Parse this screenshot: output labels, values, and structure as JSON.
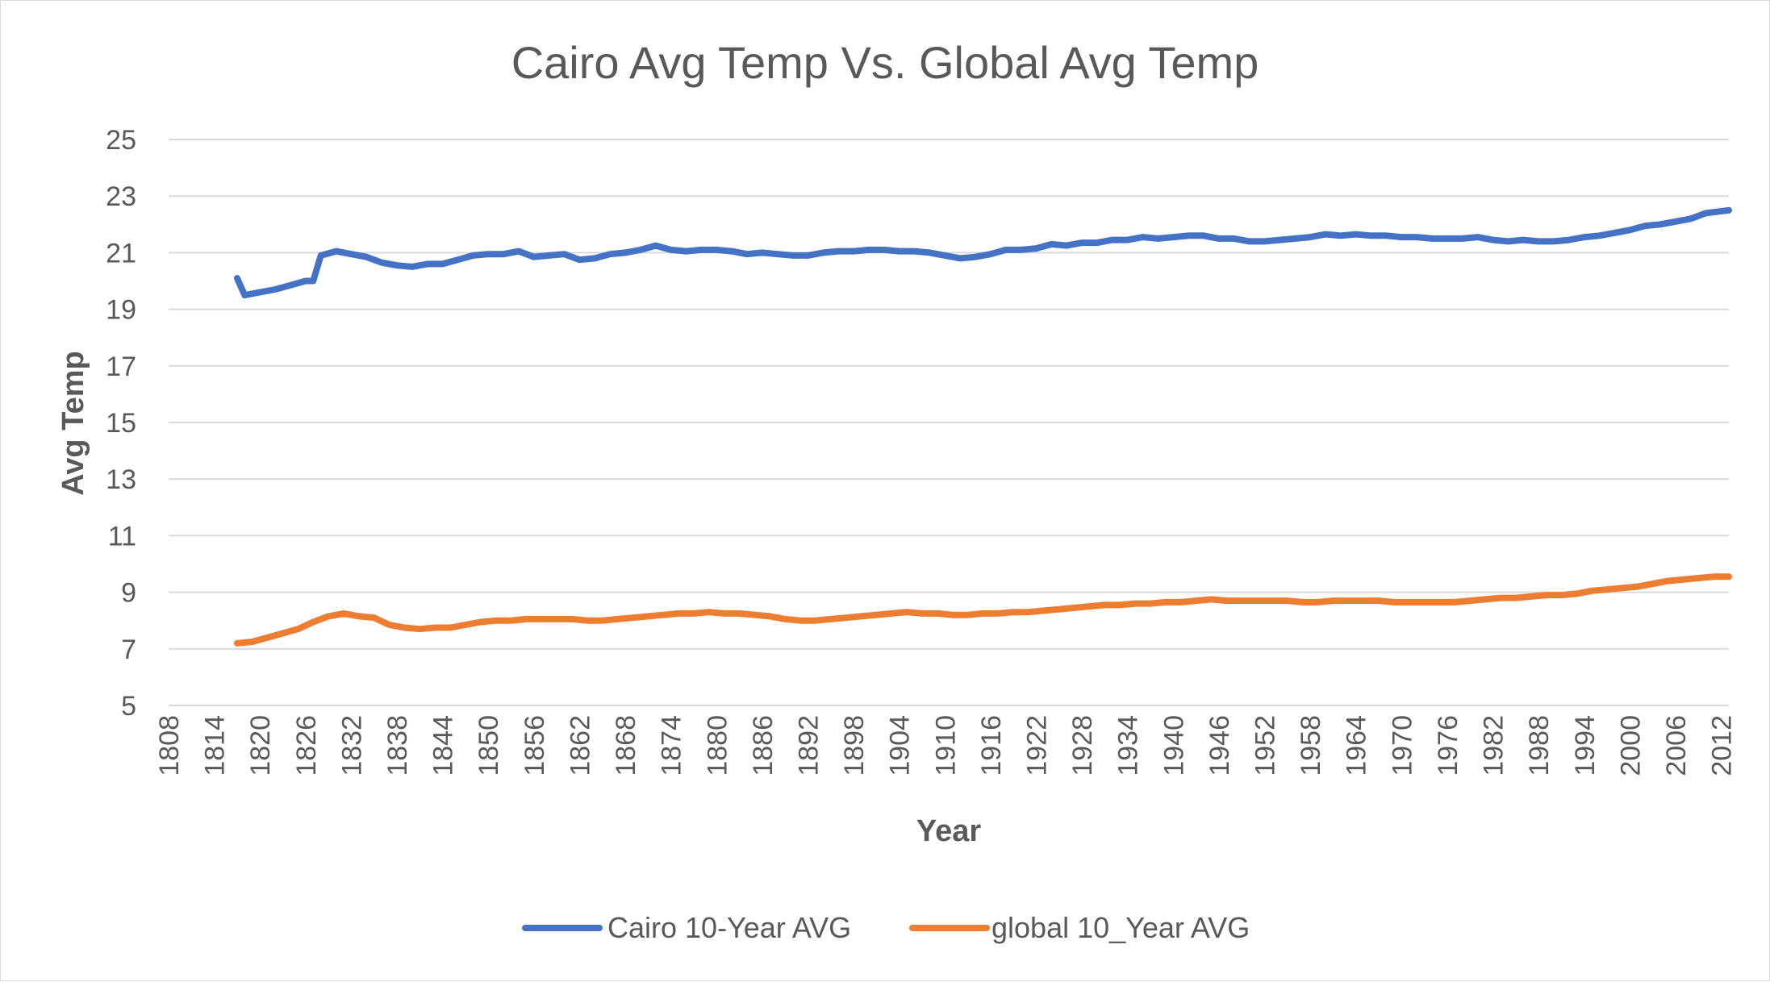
{
  "chart_data": {
    "type": "line",
    "title": "Cairo Avg Temp Vs. Global Avg Temp",
    "xlabel": "Year",
    "ylabel": "Avg Temp",
    "xlim": [
      1808,
      2013
    ],
    "ylim": [
      5,
      25
    ],
    "yticks": [
      "5",
      "7",
      "9",
      "11",
      "13",
      "15",
      "17",
      "19",
      "21",
      "23",
      "25"
    ],
    "xticks": [
      "1808",
      "1814",
      "1820",
      "1826",
      "1832",
      "1838",
      "1844",
      "1850",
      "1856",
      "1862",
      "1868",
      "1874",
      "1880",
      "1886",
      "1892",
      "1898",
      "1904",
      "1910",
      "1916",
      "1922",
      "1928",
      "1934",
      "1940",
      "1946",
      "1952",
      "1958",
      "1964",
      "1970",
      "1976",
      "1982",
      "1988",
      "1994",
      "2000",
      "2006",
      "2012"
    ],
    "grid": true,
    "legend_position": "bottom",
    "series": [
      {
        "name": "Cairo 10-Year AVG",
        "color": "#4472C4",
        "points": [
          [
            1817,
            20.1
          ],
          [
            1818,
            19.5
          ],
          [
            1820,
            19.6
          ],
          [
            1822,
            19.7
          ],
          [
            1824,
            19.85
          ],
          [
            1826,
            20.0
          ],
          [
            1827,
            20.0
          ],
          [
            1828,
            20.9
          ],
          [
            1830,
            21.05
          ],
          [
            1832,
            20.95
          ],
          [
            1834,
            20.85
          ],
          [
            1836,
            20.65
          ],
          [
            1838,
            20.55
          ],
          [
            1840,
            20.5
          ],
          [
            1842,
            20.6
          ],
          [
            1844,
            20.6
          ],
          [
            1846,
            20.75
          ],
          [
            1848,
            20.9
          ],
          [
            1850,
            20.95
          ],
          [
            1852,
            20.95
          ],
          [
            1854,
            21.05
          ],
          [
            1856,
            20.85
          ],
          [
            1858,
            20.9
          ],
          [
            1860,
            20.95
          ],
          [
            1862,
            20.75
          ],
          [
            1864,
            20.8
          ],
          [
            1866,
            20.95
          ],
          [
            1868,
            21.0
          ],
          [
            1870,
            21.1
          ],
          [
            1872,
            21.25
          ],
          [
            1874,
            21.1
          ],
          [
            1876,
            21.05
          ],
          [
            1878,
            21.1
          ],
          [
            1880,
            21.1
          ],
          [
            1882,
            21.05
          ],
          [
            1884,
            20.95
          ],
          [
            1886,
            21.0
          ],
          [
            1888,
            20.95
          ],
          [
            1890,
            20.9
          ],
          [
            1892,
            20.9
          ],
          [
            1894,
            21.0
          ],
          [
            1896,
            21.05
          ],
          [
            1898,
            21.05
          ],
          [
            1900,
            21.1
          ],
          [
            1902,
            21.1
          ],
          [
            1904,
            21.05
          ],
          [
            1906,
            21.05
          ],
          [
            1908,
            21.0
          ],
          [
            1910,
            20.9
          ],
          [
            1912,
            20.8
          ],
          [
            1914,
            20.85
          ],
          [
            1916,
            20.95
          ],
          [
            1918,
            21.1
          ],
          [
            1920,
            21.1
          ],
          [
            1922,
            21.15
          ],
          [
            1924,
            21.3
          ],
          [
            1926,
            21.25
          ],
          [
            1928,
            21.35
          ],
          [
            1930,
            21.35
          ],
          [
            1932,
            21.45
          ],
          [
            1934,
            21.45
          ],
          [
            1936,
            21.55
          ],
          [
            1938,
            21.5
          ],
          [
            1940,
            21.55
          ],
          [
            1942,
            21.6
          ],
          [
            1944,
            21.6
          ],
          [
            1946,
            21.5
          ],
          [
            1948,
            21.5
          ],
          [
            1950,
            21.4
          ],
          [
            1952,
            21.4
          ],
          [
            1954,
            21.45
          ],
          [
            1956,
            21.5
          ],
          [
            1958,
            21.55
          ],
          [
            1960,
            21.65
          ],
          [
            1962,
            21.6
          ],
          [
            1964,
            21.65
          ],
          [
            1966,
            21.6
          ],
          [
            1968,
            21.6
          ],
          [
            1970,
            21.55
          ],
          [
            1972,
            21.55
          ],
          [
            1974,
            21.5
          ],
          [
            1976,
            21.5
          ],
          [
            1978,
            21.5
          ],
          [
            1980,
            21.55
          ],
          [
            1982,
            21.45
          ],
          [
            1984,
            21.4
          ],
          [
            1986,
            21.45
          ],
          [
            1988,
            21.4
          ],
          [
            1990,
            21.4
          ],
          [
            1992,
            21.45
          ],
          [
            1994,
            21.55
          ],
          [
            1996,
            21.6
          ],
          [
            1998,
            21.7
          ],
          [
            2000,
            21.8
          ],
          [
            2002,
            21.95
          ],
          [
            2004,
            22.0
          ],
          [
            2006,
            22.1
          ],
          [
            2008,
            22.2
          ],
          [
            2010,
            22.4
          ],
          [
            2013,
            22.5
          ]
        ]
      },
      {
        "name": "global 10_Year AVG",
        "color": "#ED7D31",
        "points": [
          [
            1817,
            7.2
          ],
          [
            1819,
            7.25
          ],
          [
            1821,
            7.4
          ],
          [
            1823,
            7.55
          ],
          [
            1825,
            7.7
          ],
          [
            1827,
            7.95
          ],
          [
            1829,
            8.15
          ],
          [
            1831,
            8.25
          ],
          [
            1833,
            8.15
          ],
          [
            1835,
            8.1
          ],
          [
            1837,
            7.85
          ],
          [
            1839,
            7.75
          ],
          [
            1841,
            7.7
          ],
          [
            1843,
            7.75
          ],
          [
            1845,
            7.75
          ],
          [
            1847,
            7.85
          ],
          [
            1849,
            7.95
          ],
          [
            1851,
            8.0
          ],
          [
            1853,
            8.0
          ],
          [
            1855,
            8.05
          ],
          [
            1857,
            8.05
          ],
          [
            1859,
            8.05
          ],
          [
            1861,
            8.05
          ],
          [
            1863,
            8.0
          ],
          [
            1865,
            8.0
          ],
          [
            1867,
            8.05
          ],
          [
            1869,
            8.1
          ],
          [
            1871,
            8.15
          ],
          [
            1873,
            8.2
          ],
          [
            1875,
            8.25
          ],
          [
            1877,
            8.25
          ],
          [
            1879,
            8.3
          ],
          [
            1881,
            8.25
          ],
          [
            1883,
            8.25
          ],
          [
            1885,
            8.2
          ],
          [
            1887,
            8.15
          ],
          [
            1889,
            8.05
          ],
          [
            1891,
            8.0
          ],
          [
            1893,
            8.0
          ],
          [
            1895,
            8.05
          ],
          [
            1897,
            8.1
          ],
          [
            1899,
            8.15
          ],
          [
            1901,
            8.2
          ],
          [
            1903,
            8.25
          ],
          [
            1905,
            8.3
          ],
          [
            1907,
            8.25
          ],
          [
            1909,
            8.25
          ],
          [
            1911,
            8.2
          ],
          [
            1913,
            8.2
          ],
          [
            1915,
            8.25
          ],
          [
            1917,
            8.25
          ],
          [
            1919,
            8.3
          ],
          [
            1921,
            8.3
          ],
          [
            1923,
            8.35
          ],
          [
            1925,
            8.4
          ],
          [
            1927,
            8.45
          ],
          [
            1929,
            8.5
          ],
          [
            1931,
            8.55
          ],
          [
            1933,
            8.55
          ],
          [
            1935,
            8.6
          ],
          [
            1937,
            8.6
          ],
          [
            1939,
            8.65
          ],
          [
            1941,
            8.65
          ],
          [
            1943,
            8.7
          ],
          [
            1945,
            8.75
          ],
          [
            1947,
            8.7
          ],
          [
            1949,
            8.7
          ],
          [
            1951,
            8.7
          ],
          [
            1953,
            8.7
          ],
          [
            1955,
            8.7
          ],
          [
            1957,
            8.65
          ],
          [
            1959,
            8.65
          ],
          [
            1961,
            8.7
          ],
          [
            1963,
            8.7
          ],
          [
            1965,
            8.7
          ],
          [
            1967,
            8.7
          ],
          [
            1969,
            8.65
          ],
          [
            1971,
            8.65
          ],
          [
            1973,
            8.65
          ],
          [
            1975,
            8.65
          ],
          [
            1977,
            8.65
          ],
          [
            1979,
            8.7
          ],
          [
            1981,
            8.75
          ],
          [
            1983,
            8.8
          ],
          [
            1985,
            8.8
          ],
          [
            1987,
            8.85
          ],
          [
            1989,
            8.9
          ],
          [
            1991,
            8.9
          ],
          [
            1993,
            8.95
          ],
          [
            1995,
            9.05
          ],
          [
            1997,
            9.1
          ],
          [
            1999,
            9.15
          ],
          [
            2001,
            9.2
          ],
          [
            2003,
            9.3
          ],
          [
            2005,
            9.4
          ],
          [
            2007,
            9.45
          ],
          [
            2009,
            9.5
          ],
          [
            2011,
            9.55
          ],
          [
            2013,
            9.55
          ]
        ]
      }
    ]
  }
}
